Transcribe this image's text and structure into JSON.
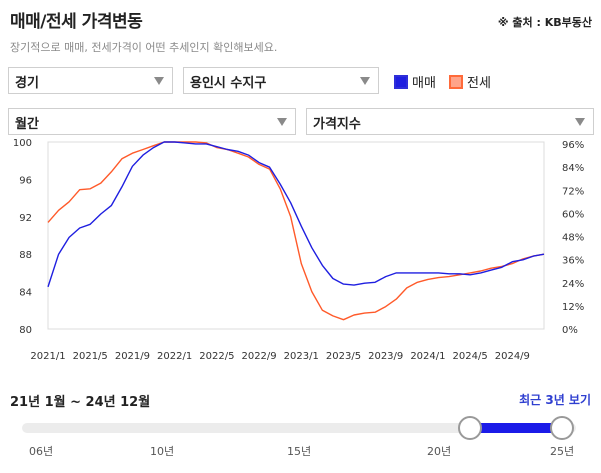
{
  "header": {
    "title": "매매/전세 가격변동",
    "source": "※ 출처 : KB부동산",
    "subtitle": "장기적으로 매매, 전세가격이 어떤 추세인지 확인해보세요."
  },
  "filters": {
    "region": "경기",
    "city": "용인시 수지구",
    "period": "월간",
    "index_type": "가격지수"
  },
  "legend": {
    "sale": "매매",
    "jeonse": "전세"
  },
  "colors": {
    "sale": "#1f1fe0",
    "jeonse": "#ff5a2a",
    "accent": "#1b1be8"
  },
  "chart_data": {
    "type": "line",
    "x": [
      "2021/1",
      "2021/2",
      "2021/3",
      "2021/4",
      "2021/5",
      "2021/6",
      "2021/7",
      "2021/8",
      "2021/9",
      "2021/10",
      "2021/11",
      "2021/12",
      "2022/1",
      "2022/2",
      "2022/3",
      "2022/4",
      "2022/5",
      "2022/6",
      "2022/7",
      "2022/8",
      "2022/9",
      "2022/10",
      "2022/11",
      "2022/12",
      "2023/1",
      "2023/2",
      "2023/3",
      "2023/4",
      "2023/5",
      "2023/6",
      "2023/7",
      "2023/8",
      "2023/9",
      "2023/10",
      "2023/11",
      "2023/12",
      "2024/1",
      "2024/2",
      "2024/3",
      "2024/4",
      "2024/5",
      "2024/6",
      "2024/7",
      "2024/8",
      "2024/9",
      "2024/10",
      "2024/11",
      "2024/12"
    ],
    "x_ticks": [
      "2021/1",
      "2021/5",
      "2021/9",
      "2022/1",
      "2022/5",
      "2022/9",
      "2023/1",
      "2023/5",
      "2023/9",
      "2024/1",
      "2024/5",
      "2024/9"
    ],
    "y_left_ticks": [
      80,
      84,
      88,
      92,
      96,
      100
    ],
    "y_right_ticks": [
      "0%",
      "12%",
      "24%",
      "36%",
      "48%",
      "60%",
      "72%",
      "84%",
      "96%"
    ],
    "ylim": [
      80,
      100
    ],
    "series": [
      {
        "name": "매매",
        "values": [
          84.5,
          88.0,
          89.8,
          90.8,
          91.2,
          92.3,
          93.2,
          95.2,
          97.4,
          98.6,
          99.4,
          100.0,
          100.0,
          99.9,
          99.8,
          99.8,
          99.5,
          99.2,
          99.0,
          98.6,
          97.8,
          97.3,
          95.5,
          93.5,
          91.0,
          88.7,
          86.8,
          85.4,
          84.8,
          84.7,
          84.9,
          85.0,
          85.6,
          86.0,
          86.0,
          86.0,
          86.0,
          86.0,
          85.9,
          85.9,
          85.8,
          86.0,
          86.3,
          86.6,
          87.2,
          87.4,
          87.8,
          88.0
        ]
      },
      {
        "name": "전세",
        "values": [
          91.4,
          92.7,
          93.6,
          94.9,
          95.0,
          95.6,
          96.8,
          98.2,
          98.8,
          99.2,
          99.6,
          100.0,
          100.0,
          100.0,
          100.0,
          99.9,
          99.4,
          99.2,
          98.8,
          98.4,
          97.6,
          97.1,
          95.0,
          92.0,
          87.0,
          84.0,
          82.0,
          81.4,
          81.0,
          81.5,
          81.7,
          81.8,
          82.4,
          83.2,
          84.4,
          85.0,
          85.3,
          85.5,
          85.6,
          85.8,
          86.0,
          86.2,
          86.5,
          86.7,
          87.0,
          87.5,
          87.8,
          88.0
        ]
      }
    ]
  },
  "range": {
    "label": "21년 1월 ~ 24년 12월",
    "recent_button": "최근 3년 보기",
    "years": [
      "06년",
      "10년",
      "15년",
      "20년",
      "25년"
    ],
    "start_fraction": 0.8421,
    "end_fraction": 1.0
  }
}
